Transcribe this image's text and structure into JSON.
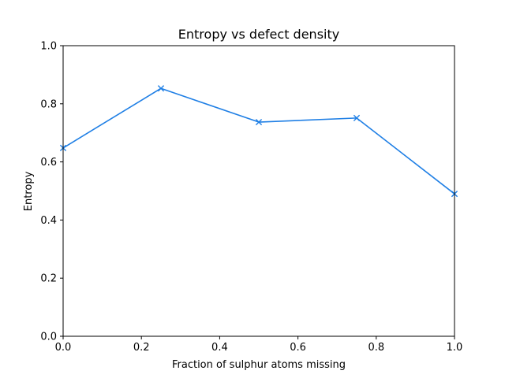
{
  "chart_data": {
    "type": "line",
    "title": "Entropy vs defect density",
    "xlabel": "Fraction of sulphur atoms missing",
    "ylabel": "Entropy",
    "xlim": [
      0.0,
      1.0
    ],
    "ylim": [
      0.0,
      1.0
    ],
    "x_ticks": [
      "0.0",
      "0.2",
      "0.4",
      "0.6",
      "0.8",
      "1.0"
    ],
    "y_ticks": [
      "0.0",
      "0.2",
      "0.4",
      "0.6",
      "0.8",
      "1.0"
    ],
    "grid": false,
    "legend": "none",
    "series": [
      {
        "color": "#1f7fe5",
        "marker": "x",
        "x": [
          0.0,
          0.25,
          0.5,
          0.75,
          1.0
        ],
        "y": [
          0.648,
          0.853,
          0.737,
          0.751,
          0.49
        ]
      }
    ]
  }
}
